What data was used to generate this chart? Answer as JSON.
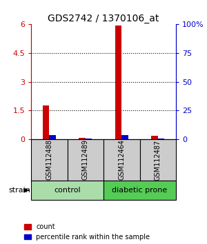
{
  "title": "GDS2742 / 1370106_at",
  "samples": [
    "GSM112488",
    "GSM112489",
    "GSM112464",
    "GSM112487"
  ],
  "count_values": [
    1.75,
    0.08,
    5.95,
    0.18
  ],
  "percentile_values_scaled": [
    0.22,
    0.05,
    0.23,
    0.04
  ],
  "left_ylim": [
    0,
    6
  ],
  "right_ylim": [
    0,
    100
  ],
  "left_yticks": [
    0,
    1.5,
    3,
    4.5,
    6
  ],
  "left_yticklabels": [
    "0",
    "1.5",
    "3",
    "4.5",
    "6"
  ],
  "right_yticks": [
    0,
    25,
    50,
    75,
    100
  ],
  "right_yticklabels": [
    "0",
    "25",
    "50",
    "75",
    "100%"
  ],
  "count_color": "#cc0000",
  "percentile_color": "#0000cc",
  "label_box_color": "#cccccc",
  "group_spans": [
    [
      0,
      1,
      "control",
      "#aaddaa"
    ],
    [
      2,
      3,
      "diabetic prone",
      "#55cc55"
    ]
  ],
  "legend_count_label": "count",
  "legend_percentile_label": "percentile rank within the sample",
  "strain_label": "strain"
}
